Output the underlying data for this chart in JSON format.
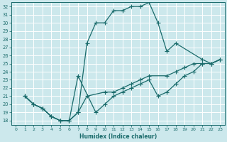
{
  "xlabel": "Humidex (Indice chaleur)",
  "ylabel": "",
  "xlim": [
    -0.5,
    23.5
  ],
  "ylim": [
    17.5,
    32.5
  ],
  "xticks": [
    0,
    1,
    2,
    3,
    4,
    5,
    6,
    7,
    8,
    9,
    10,
    11,
    12,
    13,
    14,
    15,
    16,
    17,
    18,
    19,
    20,
    21,
    22,
    23
  ],
  "yticks": [
    18,
    19,
    20,
    21,
    22,
    23,
    24,
    25,
    26,
    27,
    28,
    29,
    30,
    31,
    32
  ],
  "background_color": "#cce8ec",
  "grid_color": "#ffffff",
  "line_color": "#1a6b6b",
  "line_width": 0.9,
  "marker": "+",
  "marker_size": 4,
  "marker_ew": 0.8,
  "lines": [
    {
      "x": [
        1,
        2,
        3,
        4,
        5,
        6,
        7,
        8,
        9,
        10,
        11,
        12,
        13,
        14,
        15,
        16,
        17,
        18,
        21,
        22,
        23
      ],
      "y": [
        21,
        20,
        19.5,
        18.5,
        18,
        18,
        19,
        27.5,
        30,
        30,
        31.5,
        31.5,
        32,
        32,
        32.5,
        30,
        26.5,
        27.5,
        25.5,
        25,
        25.5
      ]
    },
    {
      "x": [
        1,
        2,
        3,
        4,
        5,
        6,
        7,
        8,
        10,
        11,
        12,
        13,
        14,
        15,
        17,
        18,
        19,
        20,
        21,
        22,
        23
      ],
      "y": [
        21,
        20,
        19.5,
        18.5,
        18,
        18,
        19,
        21,
        21.5,
        21.5,
        22,
        22.5,
        23,
        23.5,
        23.5,
        24,
        24.5,
        25,
        25,
        25,
        25.5
      ]
    },
    {
      "x": [
        1,
        2,
        3,
        4,
        5,
        6,
        7,
        9,
        10,
        11,
        12,
        13,
        14,
        15,
        16,
        17,
        18,
        19,
        20,
        21,
        22,
        23
      ],
      "y": [
        21,
        20,
        19.5,
        18.5,
        18,
        18,
        23.5,
        19,
        20,
        21,
        21.5,
        22,
        22.5,
        23,
        21,
        21.5,
        22.5,
        23.5,
        24,
        25,
        25,
        25.5
      ]
    }
  ]
}
